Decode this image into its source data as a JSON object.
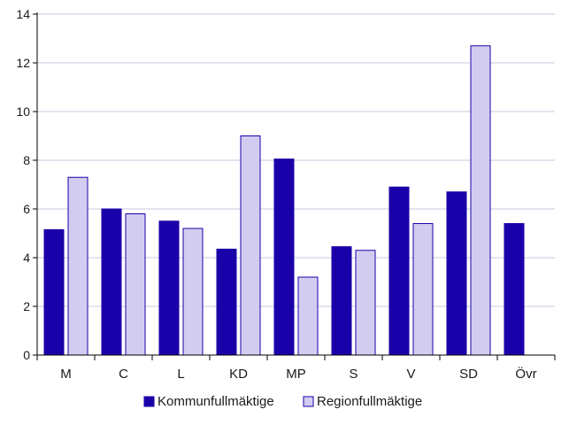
{
  "chart_data": {
    "type": "bar",
    "categories": [
      "M",
      "C",
      "L",
      "KD",
      "MP",
      "S",
      "V",
      "SD",
      "Övr"
    ],
    "series": [
      {
        "name": "Kommunfullmäktige",
        "color": "#1a00a8",
        "values": [
          5.15,
          6.0,
          5.5,
          4.35,
          8.05,
          4.45,
          6.9,
          6.7,
          5.4
        ]
      },
      {
        "name": "Regionfullmäktige",
        "color": "#d2cdf0",
        "values": [
          7.3,
          5.8,
          5.2,
          9.0,
          3.2,
          4.3,
          5.4,
          12.7,
          null
        ]
      }
    ],
    "ylim": [
      0,
      14
    ],
    "yticks": [
      "0",
      "2",
      "4",
      "6",
      "8",
      "10",
      "12",
      "14"
    ],
    "grid": true,
    "legend_position": "bottom"
  }
}
